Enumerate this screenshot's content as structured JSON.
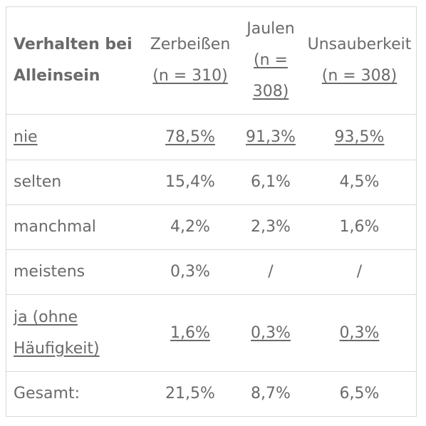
{
  "header": {
    "col0_line1": "Verhalten bei",
    "col0_line2": "Alleinsein",
    "col1_title": "Zerbeißen",
    "col1_n": "(n = 310)",
    "col2_title": "Jaulen",
    "col2_n_a": "(n =",
    "col2_n_b": "308)",
    "col3_title": "Unsauberkeit",
    "col3_n": "(n = 308)"
  },
  "rows": [
    {
      "label": "nie",
      "zerbeissen": "78,5%",
      "jaulen": "91,3%",
      "unsauberkeit": "93,5%"
    },
    {
      "label": "selten",
      "zerbeissen": "15,4%",
      "jaulen": "6,1%",
      "unsauberkeit": "4,5%"
    },
    {
      "label": "manchmal",
      "zerbeissen": "4,2%",
      "jaulen": "2,3%",
      "unsauberkeit": "1,6%"
    },
    {
      "label": "meistens",
      "zerbeissen": "0,3%",
      "jaulen": "/",
      "unsauberkeit": "/"
    },
    {
      "label_a": "ja (ohne",
      "label_b": "Häufigkeit)",
      "zerbeissen": "1,6%",
      "jaulen": "0,3%",
      "unsauberkeit": "0,3%"
    },
    {
      "label": "Gesamt:",
      "zerbeissen": "21,5%",
      "jaulen": "8,7%",
      "unsauberkeit": "6,5%"
    }
  ]
}
